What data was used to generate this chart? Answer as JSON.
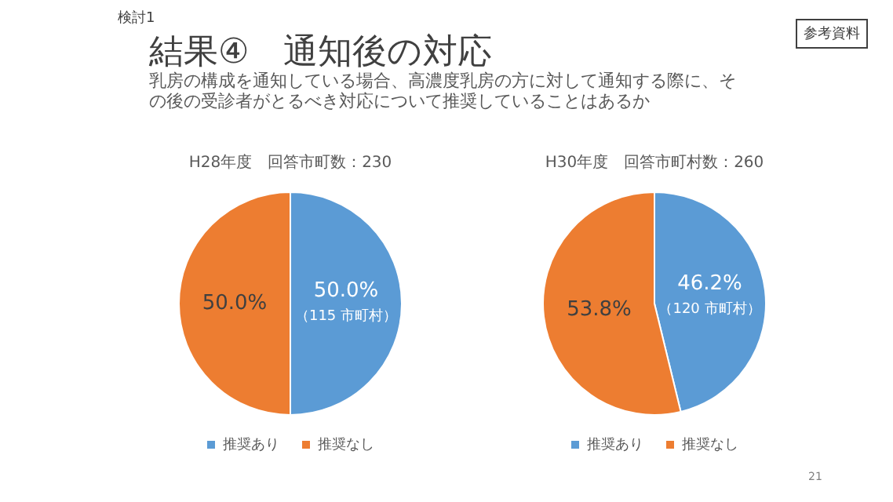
{
  "chart_data": [
    {
      "type": "other",
      "title": "結果④　通知後の対応",
      "subtitle": "乳房の構成を通知している場合、高濃度乳房の方に対して通知する際に、その後の受診者がとるべき対応について推奨していることはあるか",
      "annotations": [
        "検討1",
        "参考資料",
        "21"
      ]
    },
    {
      "type": "pie",
      "title": "H28年度　回答市町数：230",
      "categories": [
        "推奨あり",
        "推奨なし"
      ],
      "values": [
        50.0,
        50.0
      ],
      "colors": [
        "#5b9bd5",
        "#ed7d31"
      ],
      "value_labels": [
        "50.0%\n（115 市町村）",
        "50.0%"
      ],
      "legend": "bottom"
    },
    {
      "type": "pie",
      "title": "H30年度　回答市町村数：260",
      "categories": [
        "推奨あり",
        "推奨なし"
      ],
      "values": [
        46.2,
        53.8
      ],
      "colors": [
        "#5b9bd5",
        "#ed7d31"
      ],
      "value_labels": [
        "46.2%\n（120 市町村）",
        "53.8%"
      ],
      "legend": "bottom"
    }
  ]
}
